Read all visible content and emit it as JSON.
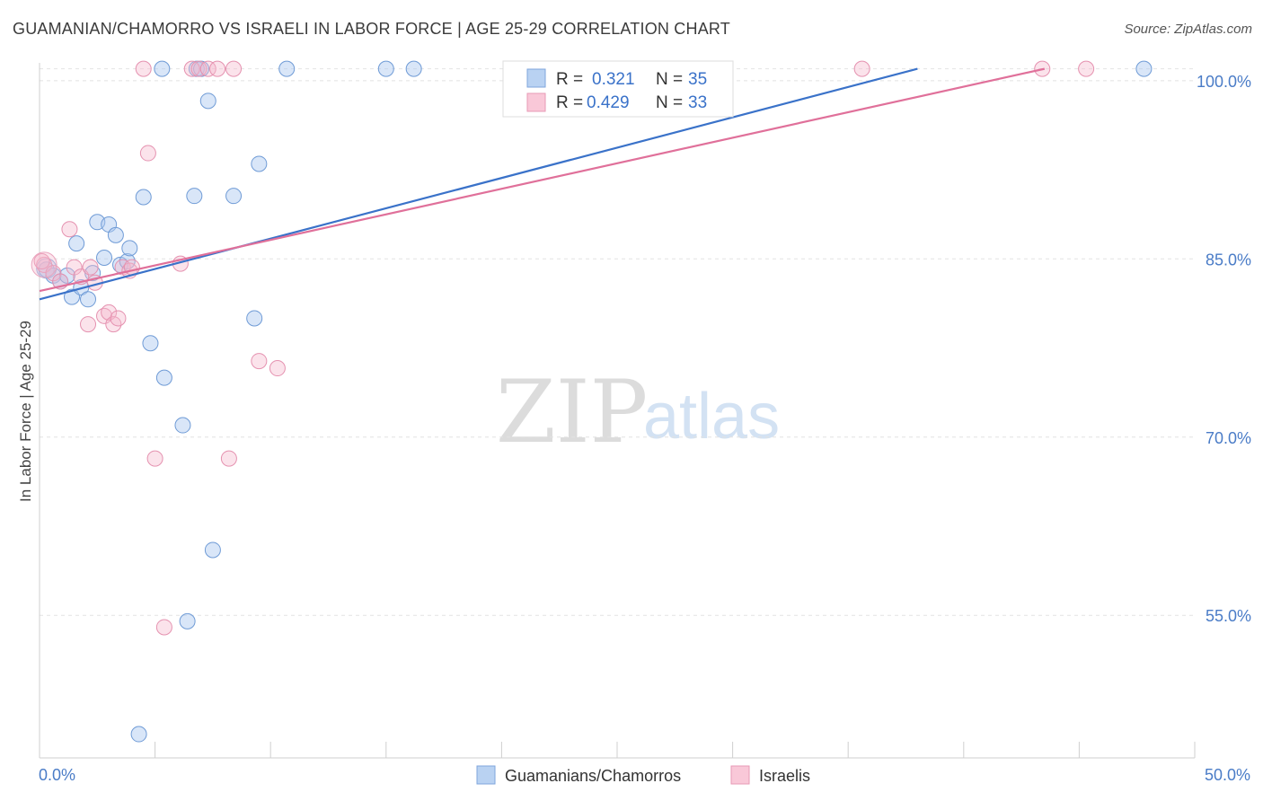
{
  "header": {
    "title": "GUAMANIAN/CHAMORRO VS ISRAELI IN LABOR FORCE | AGE 25-29 CORRELATION CHART",
    "source": "Source: ZipAtlas.com"
  },
  "watermark": {
    "zip": "ZIP",
    "atlas": "atlas"
  },
  "chart_data": {
    "type": "scatter",
    "title": "GUAMANIAN/CHAMORRO VS ISRAELI IN LABOR FORCE | AGE 25-29 CORRELATION CHART",
    "xlabel": "",
    "ylabel": "In Labor Force | Age 25-29",
    "xlim": [
      0,
      50
    ],
    "ylim": [
      43,
      101.5
    ],
    "x_tick_labels": [
      "0.0%",
      "50.0%"
    ],
    "y_ticks": [
      55,
      70,
      85,
      100
    ],
    "y_tick_labels": [
      "55.0%",
      "70.0%",
      "85.0%",
      "100.0%"
    ],
    "colors": {
      "blue": "#3a72c9",
      "pink": "#e0709a",
      "blue_fill": "#aac8f0",
      "pink_fill": "#f6b8cc"
    },
    "legend": {
      "r_label": "R =",
      "n_label": "N =",
      "entries": [
        {
          "r": "0.321",
          "n": "35"
        },
        {
          "r": "0.429",
          "n": "33"
        }
      ]
    },
    "series": [
      {
        "name": "Guamanians/Chamorros",
        "color": "#3a72c9",
        "trend": {
          "x": [
            0,
            38
          ],
          "y": [
            81.6,
            101
          ]
        },
        "points": [
          [
            0.3,
            84.1
          ],
          [
            0.6,
            83.6
          ],
          [
            0.9,
            83.1
          ],
          [
            1.2,
            83.6
          ],
          [
            1.4,
            81.8
          ],
          [
            1.6,
            86.3
          ],
          [
            1.8,
            82.6
          ],
          [
            2.1,
            81.6
          ],
          [
            2.3,
            83.8
          ],
          [
            2.5,
            88.1
          ],
          [
            2.8,
            85.1
          ],
          [
            3.0,
            87.9
          ],
          [
            3.3,
            87.0
          ],
          [
            3.5,
            84.5
          ],
          [
            3.8,
            84.8
          ],
          [
            3.9,
            85.9
          ],
          [
            4.3,
            45.0
          ],
          [
            4.5,
            90.2
          ],
          [
            4.8,
            77.9
          ],
          [
            5.3,
            101.0
          ],
          [
            5.4,
            75.0
          ],
          [
            6.2,
            71.0
          ],
          [
            6.4,
            54.5
          ],
          [
            6.7,
            90.3
          ],
          [
            6.8,
            101.0
          ],
          [
            7.0,
            101.0
          ],
          [
            7.3,
            98.3
          ],
          [
            7.5,
            60.5
          ],
          [
            8.4,
            90.3
          ],
          [
            9.3,
            80.0
          ],
          [
            9.5,
            93.0
          ],
          [
            10.7,
            101.0
          ],
          [
            15.0,
            101.0
          ],
          [
            16.2,
            101.0
          ],
          [
            47.8,
            101.0
          ]
        ]
      },
      {
        "name": "Israelis",
        "color": "#e0709a",
        "trend": {
          "x": [
            0,
            43.5
          ],
          "y": [
            82.3,
            101
          ]
        },
        "points": [
          [
            0.2,
            84.5
          ],
          [
            0.6,
            83.8
          ],
          [
            0.9,
            83.1
          ],
          [
            1.3,
            87.5
          ],
          [
            1.5,
            84.3
          ],
          [
            1.8,
            83.5
          ],
          [
            2.1,
            79.5
          ],
          [
            2.2,
            84.3
          ],
          [
            2.4,
            83.0
          ],
          [
            2.8,
            80.2
          ],
          [
            3.0,
            80.5
          ],
          [
            3.2,
            79.5
          ],
          [
            3.4,
            80.0
          ],
          [
            3.6,
            84.3
          ],
          [
            3.9,
            84.0
          ],
          [
            4.0,
            84.3
          ],
          [
            4.5,
            101.0
          ],
          [
            4.7,
            93.9
          ],
          [
            5.0,
            68.2
          ],
          [
            5.4,
            54.0
          ],
          [
            6.1,
            84.6
          ],
          [
            6.6,
            101.0
          ],
          [
            6.9,
            101.0
          ],
          [
            7.3,
            101.0
          ],
          [
            7.7,
            101.0
          ],
          [
            8.2,
            68.2
          ],
          [
            8.4,
            101.0
          ],
          [
            9.5,
            76.4
          ],
          [
            10.3,
            75.8
          ],
          [
            35.6,
            101.0
          ],
          [
            43.4,
            101.0
          ],
          [
            45.3,
            101.0
          ],
          [
            0.1,
            84.8
          ]
        ]
      }
    ]
  }
}
